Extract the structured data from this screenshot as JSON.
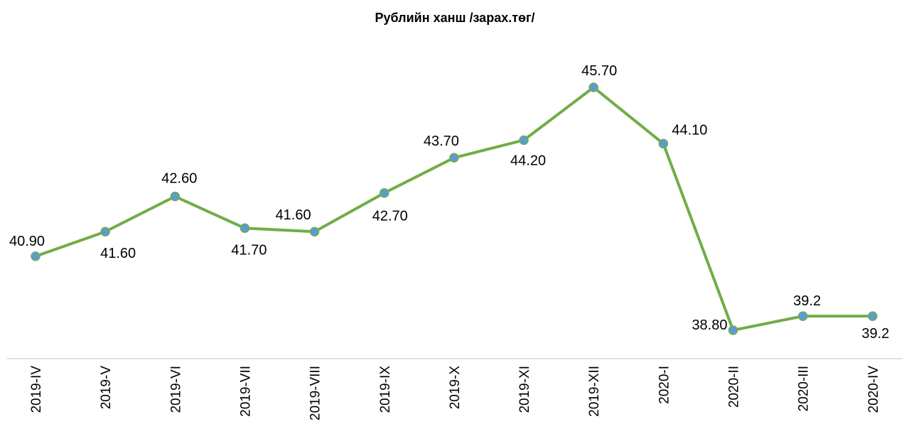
{
  "chart_data": {
    "type": "line",
    "title": "Рублийн ханш /зарах.төг/",
    "categories": [
      "2019-IV",
      "2019-V",
      "2019-VI",
      "2019-VII",
      "2019-VIII",
      "2019-IX",
      "2019-X",
      "2019-XI",
      "2019-XII",
      "2020-I",
      "2020-II",
      "2020-III",
      "2020-IV"
    ],
    "series": [
      {
        "name": "Рублийн ханш",
        "color": "#70ad47",
        "marker_color": "#5b9bd5",
        "values": [
          40.9,
          41.6,
          42.6,
          41.7,
          41.6,
          42.7,
          43.7,
          44.2,
          45.7,
          44.1,
          38.8,
          39.2,
          39.2
        ],
        "value_labels": [
          "40.90",
          "41.60",
          "42.60",
          "41.70",
          "41.60",
          "42.70",
          "43.70",
          "44.20",
          "45.70",
          "44.10",
          "38.80",
          "39.2",
          "39.2"
        ]
      }
    ]
  }
}
